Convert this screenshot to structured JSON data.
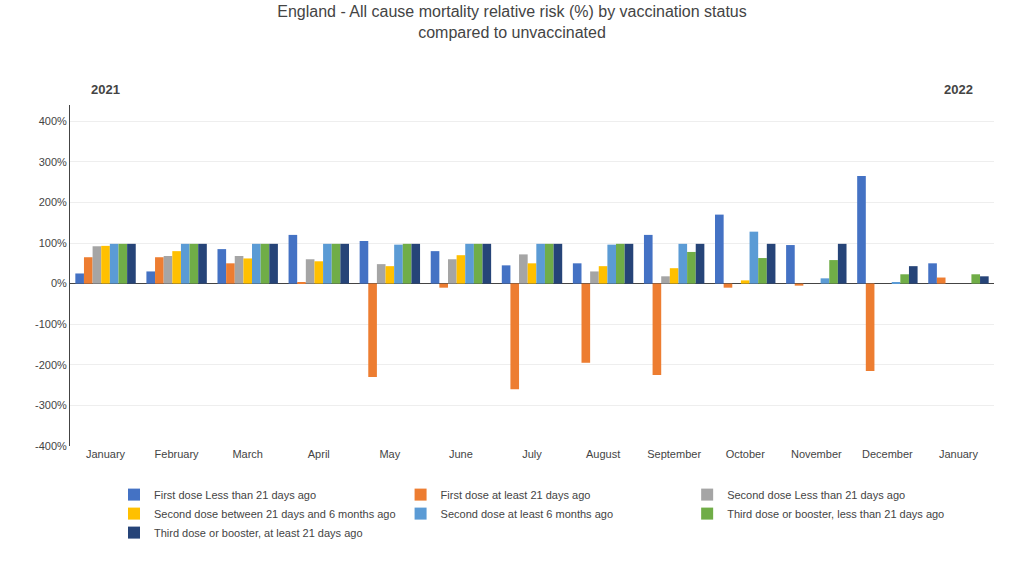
{
  "chart_data": {
    "type": "bar",
    "title": "England - All cause mortality relative risk (%) by vaccination status",
    "subtitle": "compared to unvaccinated",
    "categories": [
      "January",
      "February",
      "March",
      "April",
      "May",
      "June",
      "July",
      "August",
      "September",
      "October",
      "November",
      "December",
      "January"
    ],
    "annotations": [
      {
        "text": "2021",
        "x": 0
      },
      {
        "text": "2022",
        "x": 12
      }
    ],
    "series": [
      {
        "name": "First dose Less than 21 days ago",
        "color": "#4472C4",
        "values": [
          25,
          30,
          85,
          120,
          105,
          80,
          45,
          50,
          120,
          170,
          95,
          265,
          50
        ]
      },
      {
        "name": "First dose at least 21 days ago",
        "color": "#ED7D31",
        "values": [
          65,
          65,
          50,
          2,
          -230,
          -10,
          -260,
          -195,
          -225,
          -10,
          -5,
          -215,
          15
        ]
      },
      {
        "name": "Second dose Less than 21 days ago",
        "color": "#A5A5A5",
        "values": [
          92,
          68,
          68,
          60,
          48,
          60,
          72,
          30,
          18,
          null,
          null,
          null,
          null
        ]
      },
      {
        "name": "Second dose between 21 days and 6 months ago",
        "color": "#FFC000",
        "values": [
          93,
          80,
          62,
          55,
          43,
          70,
          50,
          43,
          38,
          8,
          null,
          null,
          null
        ]
      },
      {
        "name": "Second dose at least 6 months ago",
        "color": "#5B9BD5",
        "values": [
          98,
          98,
          98,
          98,
          96,
          98,
          98,
          96,
          98,
          128,
          13,
          3,
          null
        ]
      },
      {
        "name": "Third dose or booster, less than 21 days ago",
        "color": "#70AD47",
        "values": [
          98,
          98,
          98,
          98,
          98,
          98,
          98,
          98,
          78,
          63,
          58,
          23,
          23
        ]
      },
      {
        "name": "Third dose or booster, at least 21 days ago",
        "color": "#264478",
        "values": [
          98,
          98,
          98,
          98,
          98,
          98,
          98,
          98,
          98,
          98,
          98,
          43,
          18
        ]
      }
    ],
    "ylim": [
      -400,
      440
    ],
    "yticks": [
      {
        "value": -400,
        "label": "-400%"
      },
      {
        "value": -300,
        "label": "-300%"
      },
      {
        "value": -200,
        "label": "-200%"
      },
      {
        "value": -100,
        "label": "-100%"
      },
      {
        "value": 0,
        "label": "0%"
      },
      {
        "value": 100,
        "label": "100%"
      },
      {
        "value": 200,
        "label": "200%"
      },
      {
        "value": 300,
        "label": "300%"
      },
      {
        "value": 400,
        "label": "400%"
      }
    ],
    "grid": true,
    "legend": "bottom"
  }
}
